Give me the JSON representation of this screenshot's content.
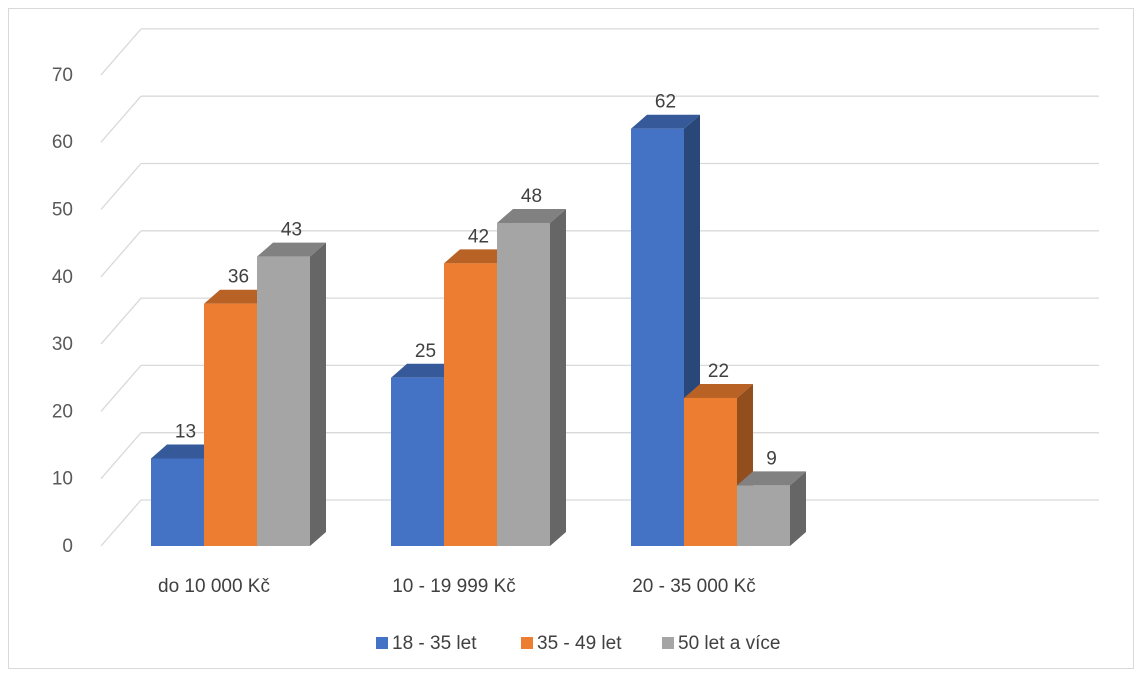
{
  "chart_data": {
    "type": "bar",
    "title": "",
    "xlabel": "",
    "ylabel": "",
    "ylim": [
      0,
      70
    ],
    "ytick_step": 10,
    "grid": true,
    "legend_position": "bottom",
    "three_d": true,
    "categories": [
      "do 10 000 Kč",
      "10 - 19 999 Kč",
      "20 - 35 000 Kč"
    ],
    "series": [
      {
        "name": "18 - 35 let",
        "color": "#4472c4",
        "values": [
          13,
          25,
          62
        ]
      },
      {
        "name": "35 - 49 let",
        "color": "#ed7d31",
        "values": [
          36,
          42,
          22
        ]
      },
      {
        "name": "50 let a více",
        "color": "#a5a5a5",
        "values": [
          43,
          48,
          9
        ]
      }
    ]
  }
}
